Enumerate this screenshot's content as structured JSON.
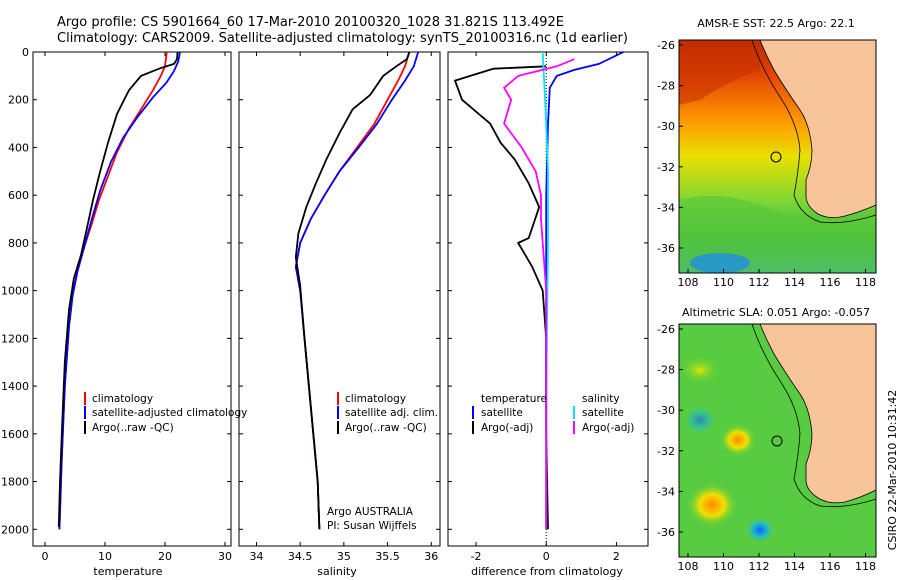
{
  "header": {
    "line1": "Argo profile: CS 5901664_60 17-Mar-2010 20100320_1028 31.821S 113.492E",
    "line2": "Climatology: CARS2009. Satellite-adjusted climatology: synTS_20100316.nc (1d earlier)"
  },
  "colors": {
    "climatology": "#ff0000",
    "satellite": "#0000ff",
    "argo": "#000000",
    "sat_s": "#00e5ff",
    "argo_s": "#ff00ff",
    "land": "#f8c49a"
  },
  "chart_data": [
    {
      "type": "line",
      "id": "temperature",
      "xlabel": "temperature",
      "ylabel": "",
      "xlim": [
        -2,
        31
      ],
      "ylim": [
        2070,
        0
      ],
      "xticks": [
        0,
        10,
        20,
        30
      ],
      "yticks": [
        0,
        200,
        400,
        600,
        800,
        1000,
        1200,
        1400,
        1600,
        1800,
        2000
      ],
      "legend": [
        "climatology",
        "satellite-adjusted climatology",
        "Argo(..raw -QC)"
      ],
      "series": [
        {
          "name": "climatology",
          "color": "#ff0000",
          "points": [
            [
              20.3,
              0
            ],
            [
              20,
              60
            ],
            [
              19.3,
              100
            ],
            [
              18,
              160
            ],
            [
              16,
              240
            ],
            [
              14,
              320
            ],
            [
              12,
              420
            ],
            [
              10.5,
              520
            ],
            [
              9,
              620
            ],
            [
              7.8,
              720
            ],
            [
              6.5,
              820
            ],
            [
              5.4,
              920
            ],
            [
              4.6,
              1020
            ],
            [
              4,
              1150
            ],
            [
              3.3,
              1400
            ],
            [
              2.8,
              1700
            ],
            [
              2.4,
              2000
            ]
          ]
        },
        {
          "name": "satellite-adjusted climatology",
          "color": "#0000ff",
          "points": [
            [
              22.5,
              0
            ],
            [
              22.2,
              40
            ],
            [
              21.5,
              80
            ],
            [
              20.2,
              130
            ],
            [
              18,
              190
            ],
            [
              15.5,
              270
            ],
            [
              13,
              360
            ],
            [
              11,
              460
            ],
            [
              9.2,
              580
            ],
            [
              7.8,
              700
            ],
            [
              6.5,
              820
            ],
            [
              5.4,
              920
            ],
            [
              4.6,
              1020
            ],
            [
              4,
              1150
            ],
            [
              3.3,
              1400
            ],
            [
              2.8,
              1700
            ],
            [
              2.4,
              2000
            ]
          ]
        },
        {
          "name": "Argo(..raw -QC)",
          "color": "#000000",
          "points": [
            [
              22.1,
              0
            ],
            [
              22,
              30
            ],
            [
              21.5,
              50
            ],
            [
              19,
              70
            ],
            [
              16,
              100
            ],
            [
              14,
              160
            ],
            [
              12,
              260
            ],
            [
              10.5,
              380
            ],
            [
              9.2,
              500
            ],
            [
              8,
              620
            ],
            [
              6.8,
              760
            ],
            [
              6,
              850
            ],
            [
              4.8,
              950
            ],
            [
              4,
              1080
            ],
            [
              3.3,
              1300
            ],
            [
              2.8,
              1600
            ],
            [
              2.5,
              1800
            ],
            [
              2.3,
              1990
            ]
          ]
        }
      ]
    },
    {
      "type": "line",
      "id": "salinity",
      "xlabel": "salinity",
      "ylabel": "",
      "xlim": [
        33.8,
        36.1
      ],
      "ylim": [
        2070,
        0
      ],
      "xticks": [
        34,
        34.5,
        35,
        35.5,
        36
      ],
      "legend": [
        "climatology",
        "satellite adj. clim.",
        "Argo(..raw -QC)"
      ],
      "annotation": [
        "Argo AUSTRALIA",
        "PI: Susan Wijffels"
      ],
      "series": [
        {
          "name": "climatology",
          "color": "#ff0000",
          "points": [
            [
              35.75,
              0
            ],
            [
              35.7,
              60
            ],
            [
              35.62,
              120
            ],
            [
              35.5,
              200
            ],
            [
              35.35,
              300
            ],
            [
              35.15,
              400
            ],
            [
              34.95,
              500
            ],
            [
              34.78,
              600
            ],
            [
              34.62,
              700
            ],
            [
              34.5,
              800
            ],
            [
              34.45,
              900
            ],
            [
              34.5,
              1000
            ],
            [
              34.55,
              1200
            ],
            [
              34.6,
              1400
            ],
            [
              34.65,
              1600
            ],
            [
              34.7,
              1800
            ],
            [
              34.72,
              2000
            ]
          ]
        },
        {
          "name": "satellite adj. clim.",
          "color": "#0000ff",
          "points": [
            [
              35.85,
              0
            ],
            [
              35.8,
              60
            ],
            [
              35.7,
              120
            ],
            [
              35.55,
              200
            ],
            [
              35.38,
              300
            ],
            [
              35.17,
              400
            ],
            [
              34.95,
              500
            ],
            [
              34.78,
              600
            ],
            [
              34.62,
              700
            ],
            [
              34.5,
              800
            ],
            [
              34.45,
              900
            ],
            [
              34.5,
              1000
            ],
            [
              34.55,
              1200
            ],
            [
              34.6,
              1400
            ],
            [
              34.65,
              1600
            ],
            [
              34.7,
              1800
            ],
            [
              34.72,
              2000
            ]
          ]
        },
        {
          "name": "Argo(..raw -QC)",
          "color": "#000000",
          "points": [
            [
              35.75,
              0
            ],
            [
              35.72,
              30
            ],
            [
              35.6,
              60
            ],
            [
              35.45,
              100
            ],
            [
              35.3,
              180
            ],
            [
              35.1,
              240
            ],
            [
              34.95,
              340
            ],
            [
              34.8,
              450
            ],
            [
              34.68,
              550
            ],
            [
              34.57,
              650
            ],
            [
              34.48,
              760
            ],
            [
              34.45,
              860
            ],
            [
              34.5,
              980
            ],
            [
              34.55,
              1200
            ],
            [
              34.6,
              1400
            ],
            [
              34.65,
              1600
            ],
            [
              34.7,
              1800
            ],
            [
              34.72,
              2000
            ]
          ]
        }
      ]
    },
    {
      "type": "line",
      "id": "difference",
      "xlabel": "difference from climatology",
      "ylabel": "",
      "xlim": [
        -2.8,
        2.9
      ],
      "ylim": [
        2070,
        0
      ],
      "xticks": [
        -2,
        0,
        2
      ],
      "legend_t": [
        "temperature",
        "satellite",
        "Argo(-adj)"
      ],
      "legend_s": [
        "salinity",
        "satellite",
        "Argo(-adj)"
      ],
      "series": [
        {
          "name": "satellite",
          "color": "#0000ff",
          "points": [
            [
              2.2,
              0
            ],
            [
              1.5,
              50
            ],
            [
              0.8,
              75
            ],
            [
              0.3,
              100
            ],
            [
              0.1,
              150
            ],
            [
              0.05,
              300
            ],
            [
              0,
              600
            ],
            [
              0,
              1000
            ],
            [
              0,
              2000
            ]
          ]
        },
        {
          "name": "Argo(-adj)",
          "color": "#000000",
          "points": [
            [
              0,
              60
            ],
            [
              -1.5,
              70
            ],
            [
              -2.6,
              120
            ],
            [
              -2.4,
              200
            ],
            [
              -2,
              250
            ],
            [
              -1.6,
              300
            ],
            [
              -1.3,
              380
            ],
            [
              -0.9,
              450
            ],
            [
              -0.5,
              550
            ],
            [
              -0.2,
              650
            ],
            [
              -0.5,
              780
            ],
            [
              -0.8,
              800
            ],
            [
              -0.4,
              900
            ],
            [
              -0.1,
              1000
            ],
            [
              0,
              1200
            ],
            [
              0,
              1600
            ],
            [
              0.05,
              2000
            ]
          ]
        },
        {
          "name": "satellite",
          "color": "#00e5ff",
          "points": [
            [
              -0.1,
              0
            ],
            [
              -0.05,
              150
            ],
            [
              0,
              300
            ],
            [
              0.05,
              500
            ],
            [
              0.05,
              800
            ],
            [
              0.02,
              1200
            ],
            [
              0,
              1600
            ],
            [
              0,
              2000
            ]
          ]
        },
        {
          "name": "Argo(-adj)",
          "color": "#ff00ff",
          "points": [
            [
              0.8,
              30
            ],
            [
              0.3,
              60
            ],
            [
              -0.8,
              100
            ],
            [
              -1.2,
              150
            ],
            [
              -1.0,
              200
            ],
            [
              -1.2,
              300
            ],
            [
              -0.7,
              400
            ],
            [
              -0.3,
              500
            ],
            [
              -0.15,
              600
            ],
            [
              -0.15,
              700
            ],
            [
              -0.1,
              800
            ],
            [
              -0.05,
              900
            ],
            [
              0,
              1000
            ],
            [
              0,
              2000
            ]
          ]
        }
      ]
    }
  ],
  "maps": [
    {
      "id": "sst",
      "title": "AMSR-E SST: 22.5 Argo: 22.1",
      "yticks": [
        "-26",
        "-28",
        "-30",
        "-32",
        "-34",
        "-36"
      ],
      "xticks": [
        "108",
        "110",
        "112",
        "114",
        "116",
        "118"
      ]
    },
    {
      "id": "sla",
      "title": "Altimetric SLA: 0.051  Argo: -0.057",
      "yticks": [
        "-26",
        "-28",
        "-30",
        "-32",
        "-34",
        "-36"
      ],
      "xticks": [
        "108",
        "110",
        "112",
        "114",
        "116",
        "118"
      ]
    }
  ],
  "credit": "CSIRO 22-Mar-2010 10:31:42"
}
